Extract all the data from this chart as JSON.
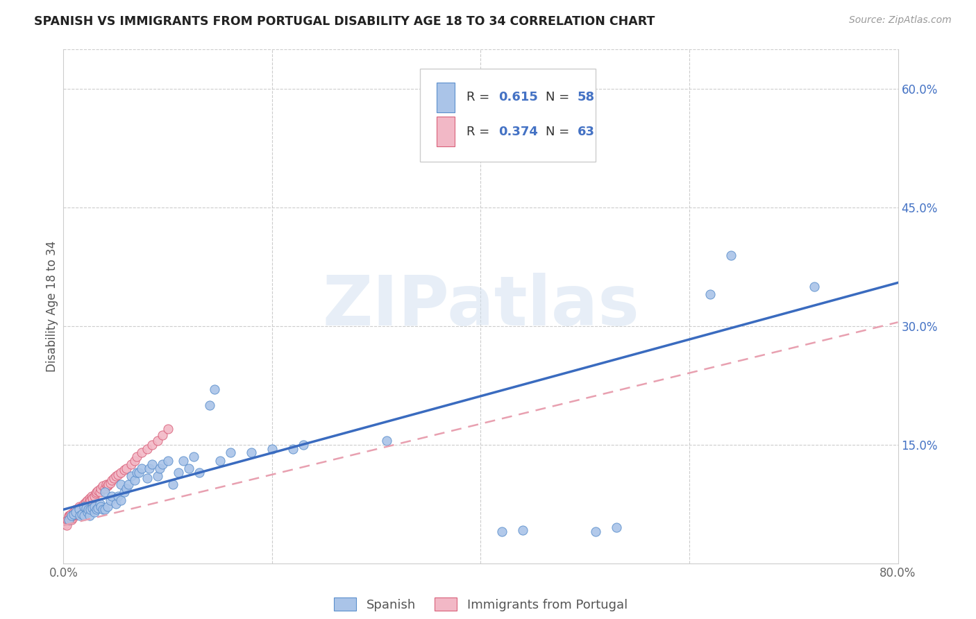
{
  "title": "SPANISH VS IMMIGRANTS FROM PORTUGAL DISABILITY AGE 18 TO 34 CORRELATION CHART",
  "source": "Source: ZipAtlas.com",
  "ylabel": "Disability Age 18 to 34",
  "xlim": [
    0.0,
    0.8
  ],
  "ylim": [
    0.0,
    0.65
  ],
  "color_blue": "#aac4e8",
  "color_pink": "#f2b8c6",
  "color_blue_edge": "#5b8fcc",
  "color_pink_edge": "#d9607a",
  "line_blue": "#3a6bbf",
  "line_pink": "#e8a0b0",
  "watermark": "ZIPatlas",
  "legend_label_spanish": "Spanish",
  "legend_label_portugal": "Immigrants from Portugal",
  "spanish_x": [
    0.005,
    0.008,
    0.01,
    0.012,
    0.015,
    0.016,
    0.018,
    0.02,
    0.02,
    0.022,
    0.023,
    0.024,
    0.025,
    0.026,
    0.028,
    0.03,
    0.03,
    0.032,
    0.033,
    0.035,
    0.036,
    0.038,
    0.04,
    0.04,
    0.042,
    0.045,
    0.046,
    0.05,
    0.052,
    0.055,
    0.055,
    0.058,
    0.06,
    0.062,
    0.065,
    0.068,
    0.07,
    0.072,
    0.075,
    0.08,
    0.082,
    0.085,
    0.09,
    0.092,
    0.095,
    0.1,
    0.105,
    0.11,
    0.115,
    0.12,
    0.125,
    0.13,
    0.14,
    0.145,
    0.15,
    0.16,
    0.18,
    0.2,
    0.22,
    0.23,
    0.31,
    0.42,
    0.44,
    0.51,
    0.53,
    0.62,
    0.64,
    0.72
  ],
  "spanish_y": [
    0.055,
    0.06,
    0.062,
    0.065,
    0.068,
    0.06,
    0.062,
    0.06,
    0.072,
    0.07,
    0.065,
    0.068,
    0.06,
    0.068,
    0.07,
    0.065,
    0.072,
    0.068,
    0.07,
    0.075,
    0.072,
    0.068,
    0.068,
    0.09,
    0.072,
    0.08,
    0.085,
    0.075,
    0.085,
    0.08,
    0.1,
    0.09,
    0.095,
    0.1,
    0.11,
    0.105,
    0.115,
    0.115,
    0.12,
    0.108,
    0.12,
    0.125,
    0.11,
    0.12,
    0.125,
    0.13,
    0.1,
    0.115,
    0.13,
    0.12,
    0.135,
    0.115,
    0.2,
    0.22,
    0.13,
    0.14,
    0.14,
    0.145,
    0.145,
    0.15,
    0.155,
    0.04,
    0.042,
    0.04,
    0.045,
    0.34,
    0.39,
    0.35
  ],
  "portugal_x": [
    0.0,
    0.001,
    0.002,
    0.003,
    0.004,
    0.005,
    0.005,
    0.006,
    0.007,
    0.007,
    0.008,
    0.009,
    0.01,
    0.01,
    0.011,
    0.012,
    0.012,
    0.013,
    0.014,
    0.015,
    0.015,
    0.016,
    0.017,
    0.018,
    0.019,
    0.02,
    0.02,
    0.021,
    0.022,
    0.023,
    0.024,
    0.025,
    0.026,
    0.027,
    0.028,
    0.03,
    0.031,
    0.032,
    0.033,
    0.035,
    0.036,
    0.038,
    0.04,
    0.041,
    0.042,
    0.043,
    0.045,
    0.046,
    0.048,
    0.05,
    0.052,
    0.055,
    0.058,
    0.06,
    0.065,
    0.068,
    0.07,
    0.075,
    0.08,
    0.085,
    0.09,
    0.095,
    0.1
  ],
  "portugal_y": [
    0.05,
    0.052,
    0.05,
    0.048,
    0.055,
    0.055,
    0.06,
    0.06,
    0.058,
    0.062,
    0.055,
    0.058,
    0.06,
    0.065,
    0.062,
    0.062,
    0.068,
    0.065,
    0.068,
    0.065,
    0.072,
    0.07,
    0.068,
    0.072,
    0.07,
    0.07,
    0.075,
    0.075,
    0.078,
    0.08,
    0.075,
    0.082,
    0.08,
    0.085,
    0.082,
    0.085,
    0.088,
    0.09,
    0.092,
    0.09,
    0.095,
    0.098,
    0.095,
    0.1,
    0.098,
    0.1,
    0.102,
    0.105,
    0.108,
    0.11,
    0.112,
    0.115,
    0.118,
    0.12,
    0.125,
    0.13,
    0.135,
    0.14,
    0.145,
    0.15,
    0.155,
    0.162,
    0.17
  ],
  "blue_line_x": [
    0.0,
    0.8
  ],
  "blue_line_y": [
    0.068,
    0.355
  ],
  "pink_line_x": [
    0.0,
    0.8
  ],
  "pink_line_y": [
    0.048,
    0.305
  ]
}
